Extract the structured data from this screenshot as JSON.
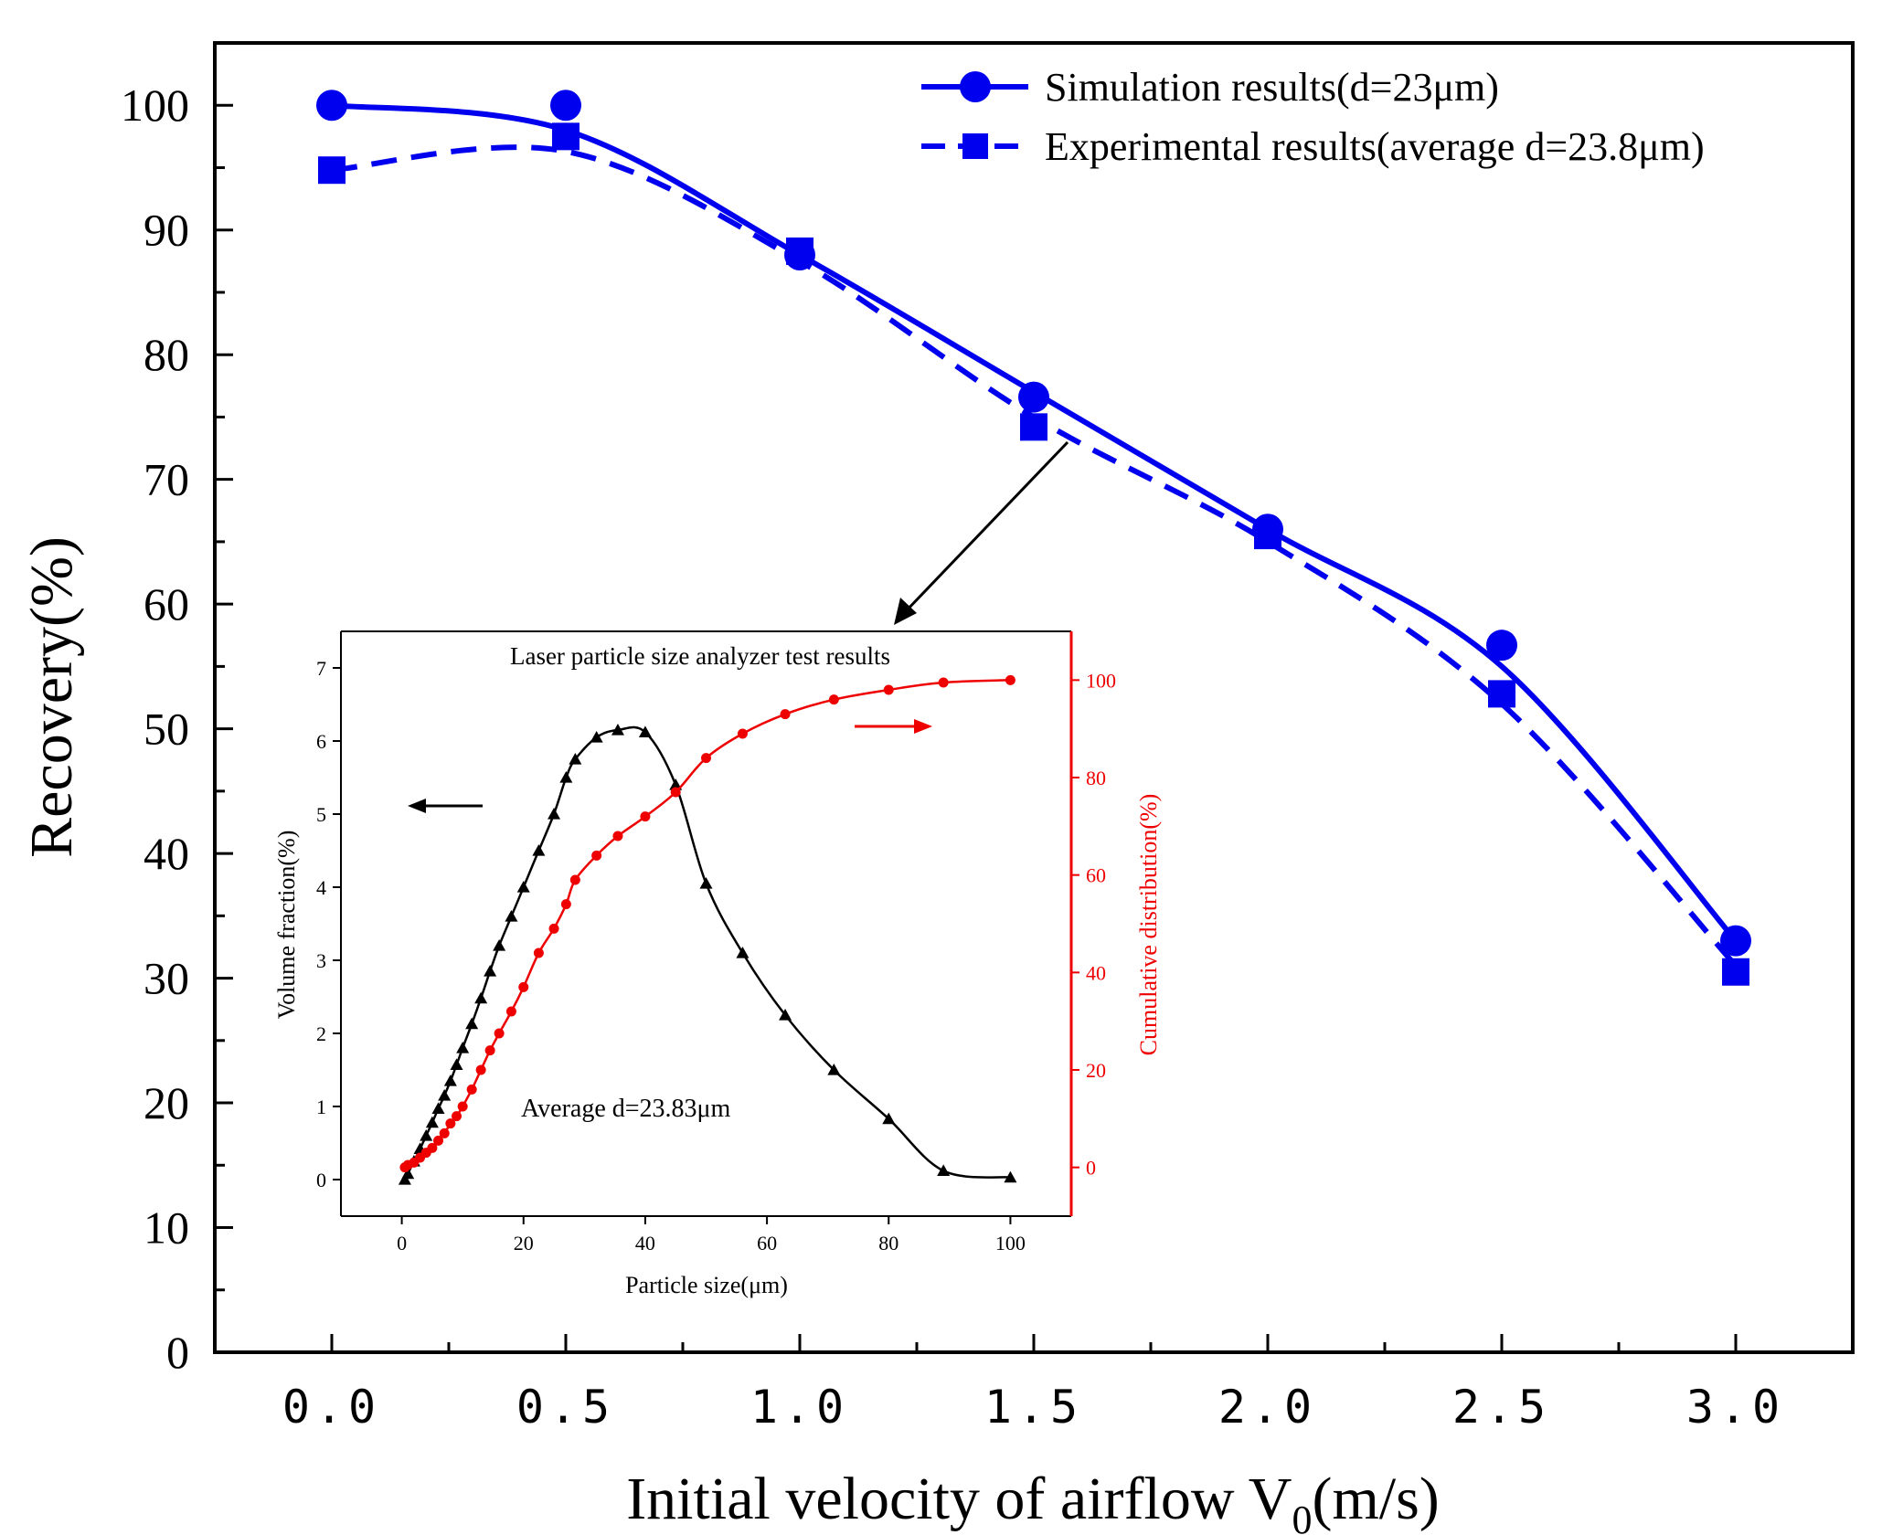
{
  "chart_data": [
    {
      "type": "line",
      "role": "main",
      "xlabel": "Initial velocity of airflow V",
      "xlabel_subscript": "0",
      "xlabel_suffix": "(m/s)",
      "ylabel": "Recovery(%)",
      "xlim": [
        -0.25,
        3.25
      ],
      "ylim": [
        0,
        105
      ],
      "xticks": [
        0.0,
        0.5,
        1.0,
        1.5,
        2.0,
        2.5,
        3.0
      ],
      "xtick_labels": [
        "0.0",
        "0.5",
        "1.0",
        "1.5",
        "2.0",
        "2.5",
        "3.0"
      ],
      "yticks": [
        0,
        10,
        20,
        30,
        40,
        50,
        60,
        70,
        80,
        90,
        100
      ],
      "ytick_labels": [
        "0",
        "10",
        "20",
        "30",
        "40",
        "50",
        "60",
        "70",
        "80",
        "90",
        "100"
      ],
      "x": [
        0.0,
        0.5,
        1.0,
        1.5,
        2.0,
        2.5,
        3.0
      ],
      "series": [
        {
          "name": "Simulation results(d=23μm)",
          "values": [
            100,
            100,
            88,
            76.6,
            66,
            56.7,
            33
          ],
          "fit": [
            100,
            98,
            88,
            77,
            66,
            55,
            33
          ],
          "marker": "circle",
          "line": "solid",
          "color": "#0000ee"
        },
        {
          "name": "Experimental results(average d=23.8μm)",
          "values": [
            94.8,
            97.5,
            88.3,
            74.2,
            65.5,
            52.8,
            30.5
          ],
          "fit": [
            94.8,
            96.3,
            87.5,
            75,
            65,
            52,
            31
          ],
          "marker": "square",
          "line": "dashed",
          "color": "#0000ee"
        }
      ],
      "legend_position": "top-right"
    },
    {
      "type": "line",
      "role": "inset",
      "title": "Laser particle size analyzer test results",
      "xlabel": "Particle size(μm)",
      "ylabel_left": "Volume fraction(%)",
      "ylabel_right": "Cumulative distribution(%)",
      "annotation": "Average d=23.83μm",
      "xlim": [
        -10,
        110
      ],
      "ylim_left": [
        -0.5,
        7.5
      ],
      "ylim_right": [
        -10,
        110
      ],
      "xticks": [
        0,
        20,
        40,
        60,
        80,
        100
      ],
      "yticks_left": [
        0,
        1,
        2,
        3,
        4,
        5,
        6,
        7
      ],
      "yticks_right": [
        0,
        20,
        40,
        60,
        80,
        100
      ],
      "series": [
        {
          "name": "Volume fraction",
          "axis": "left",
          "color": "#000000",
          "marker": "triangle",
          "x": [
            0.5,
            1,
            2,
            3,
            4,
            5,
            6,
            7,
            8,
            9,
            10,
            11.5,
            13,
            14.5,
            16,
            18,
            20,
            22.5,
            25,
            27,
            28.5,
            32,
            35.5,
            40,
            45,
            50,
            56,
            63,
            71,
            80,
            89,
            100
          ],
          "y": [
            0,
            0.08,
            0.25,
            0.42,
            0.6,
            0.78,
            0.97,
            1.15,
            1.35,
            1.57,
            1.8,
            2.13,
            2.48,
            2.85,
            3.2,
            3.6,
            4.0,
            4.5,
            5.0,
            5.5,
            5.75,
            6.05,
            6.15,
            6.12,
            5.4,
            4.05,
            3.1,
            2.25,
            1.5,
            0.83,
            0.12,
            0.03
          ]
        },
        {
          "name": "Cumulative distribution",
          "axis": "right",
          "color": "#ee0000",
          "marker": "circle",
          "x": [
            0.5,
            1,
            2,
            3,
            4,
            5,
            6,
            7,
            8,
            9,
            10,
            11.5,
            13,
            14.5,
            16,
            18,
            20,
            22.5,
            25,
            27,
            28.5,
            32,
            35.5,
            40,
            45,
            50,
            56,
            63,
            71,
            80,
            89,
            100
          ],
          "y": [
            0,
            0.5,
            1,
            2,
            3,
            4,
            5.5,
            7,
            9,
            10.5,
            12.5,
            16,
            20,
            24,
            27.5,
            32,
            37,
            44,
            49,
            54,
            59,
            64,
            68,
            72,
            77,
            84,
            89,
            93,
            96,
            98,
            99.5,
            100
          ]
        }
      ]
    }
  ]
}
